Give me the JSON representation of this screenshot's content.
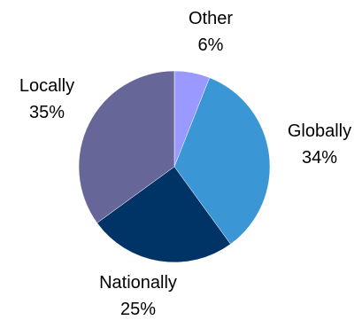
{
  "chart_data": {
    "type": "pie",
    "slices": [
      {
        "label": "Other",
        "value": 6,
        "value_label": "6%",
        "color": "#9999ff"
      },
      {
        "label": "Globally",
        "value": 34,
        "value_label": "34%",
        "color": "#3b96d6"
      },
      {
        "label": "Nationally",
        "value": 25,
        "value_label": "25%",
        "color": "#003366"
      },
      {
        "label": "Locally",
        "value": 35,
        "value_label": "35%",
        "color": "#666699"
      }
    ],
    "title": "",
    "legend": "none"
  }
}
